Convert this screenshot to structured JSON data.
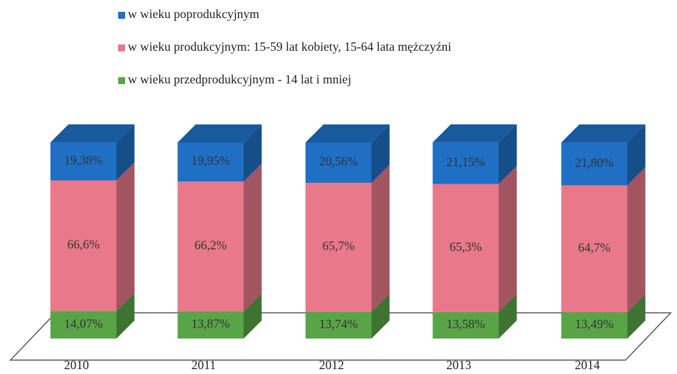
{
  "chart_data": {
    "type": "bar",
    "stacked": true,
    "categories": [
      "2010",
      "2011",
      "2012",
      "2013",
      "2014"
    ],
    "ylim": [
      0,
      100
    ],
    "series": [
      {
        "name": "w wieku poprodukcyjnym",
        "color": "#1f6fc4",
        "values": [
          19.38,
          19.95,
          20.56,
          21.15,
          21.8
        ],
        "value_labels": [
          "19,38%",
          "19,95%",
          "20,56%",
          "21,15%",
          "21,80%"
        ]
      },
      {
        "name": "w wieku produkcyjnym: 15-59 lat kobiety, 15-64 lata mężczyźni",
        "color": "#e8788a",
        "values": [
          66.6,
          66.2,
          65.7,
          65.3,
          64.7
        ],
        "value_labels": [
          "66,6%",
          "66,2%",
          "65,7%",
          "65,3%",
          "64,7%"
        ]
      },
      {
        "name": "w wieku przedprodukcyjnym - 14 lat i mniej",
        "color": "#5aa448",
        "values": [
          14.07,
          13.87,
          13.74,
          13.58,
          13.49
        ],
        "value_labels": [
          "14,07%",
          "13,87%",
          "13,74%",
          "13,58%",
          "13,49%"
        ]
      }
    ]
  }
}
